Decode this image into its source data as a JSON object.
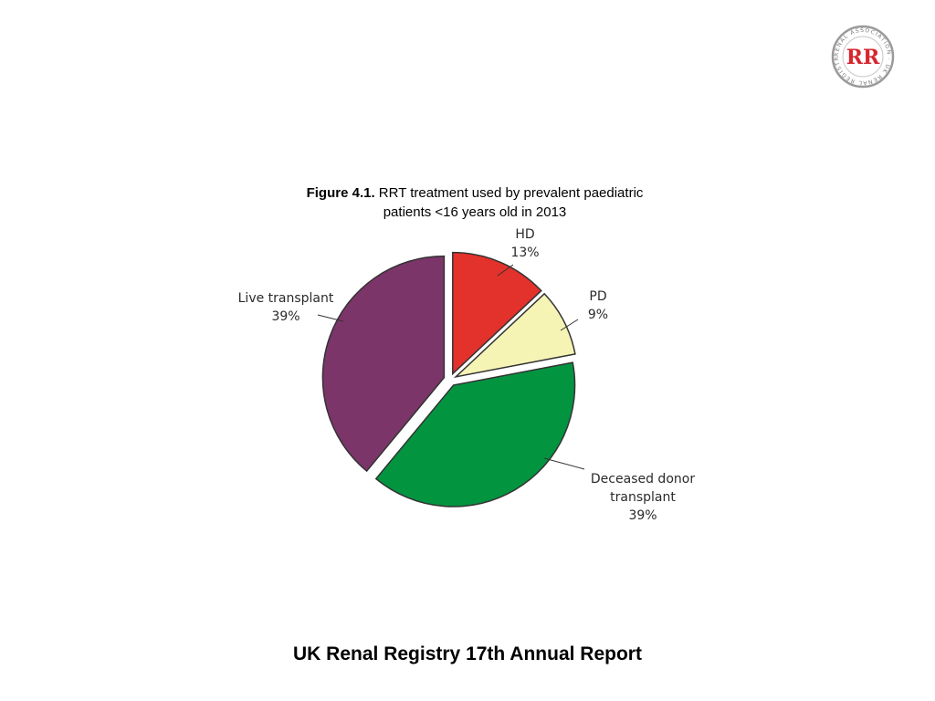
{
  "figure": {
    "number": "Figure 4.1.",
    "caption_line1": "RRT treatment used by prevalent paediatric",
    "caption_line2": "patients <16 years old in 2013"
  },
  "logo": {
    "icon": "renal-association-logo",
    "monogram": "RR",
    "ring_text": "RENAL ASSOCIATION · UK RENAL REGISTRY"
  },
  "footer": {
    "text": "UK Renal Registry 17th Annual Report"
  },
  "chart_data": {
    "type": "pie",
    "title": "",
    "slices": [
      {
        "label": "HD",
        "value": 13,
        "display": "13%",
        "color": "#e3312b"
      },
      {
        "label": "PD",
        "value": 9,
        "display": "9%",
        "color": "#f6f4b4"
      },
      {
        "label": "Deceased donor transplant",
        "value": 39,
        "display": "39%",
        "color": "#039440"
      },
      {
        "label": "Live transplant",
        "value": 39,
        "display": "39%",
        "color": "#7b3569"
      }
    ],
    "exploded": true,
    "start": "12 o'clock, clockwise",
    "legend": "none (direct labels with leader lines)"
  }
}
